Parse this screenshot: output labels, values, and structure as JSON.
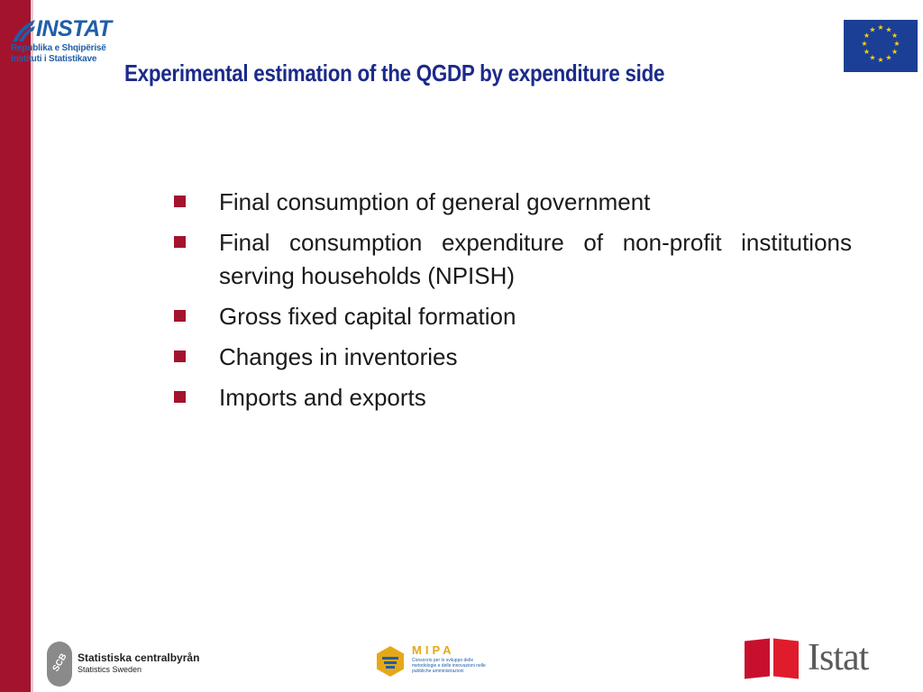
{
  "header": {
    "org_logo": {
      "word": "INSTAT",
      "line1": "Republika e Shqipërisë",
      "line2": "Instituti i Statistikave"
    },
    "flag_icon": "eu-flag-icon",
    "title": "Experimental estimation of the QGDP by expenditure side"
  },
  "bullets": [
    "Final consumption of general government",
    "Final consumption expenditure of non-profit institutions serving households (NPISH)",
    "Gross fixed capital formation",
    "Changes in inventories",
    "Imports and exports"
  ],
  "footer": {
    "scb": {
      "mark": "SCB",
      "name": "Statistiska centralbyrån",
      "sub": "Statistics Sweden"
    },
    "mipa": {
      "name": "MIPA",
      "desc": "Consorzio per lo sviluppo delle metodologie e delle innovazioni nelle pubbliche amministrazioni"
    },
    "istat": {
      "word": "Istat"
    }
  },
  "colors": {
    "accent": "#a3132e",
    "title": "#1b2a8a",
    "eu_blue": "#1b3f94",
    "eu_star": "#f7d117"
  }
}
